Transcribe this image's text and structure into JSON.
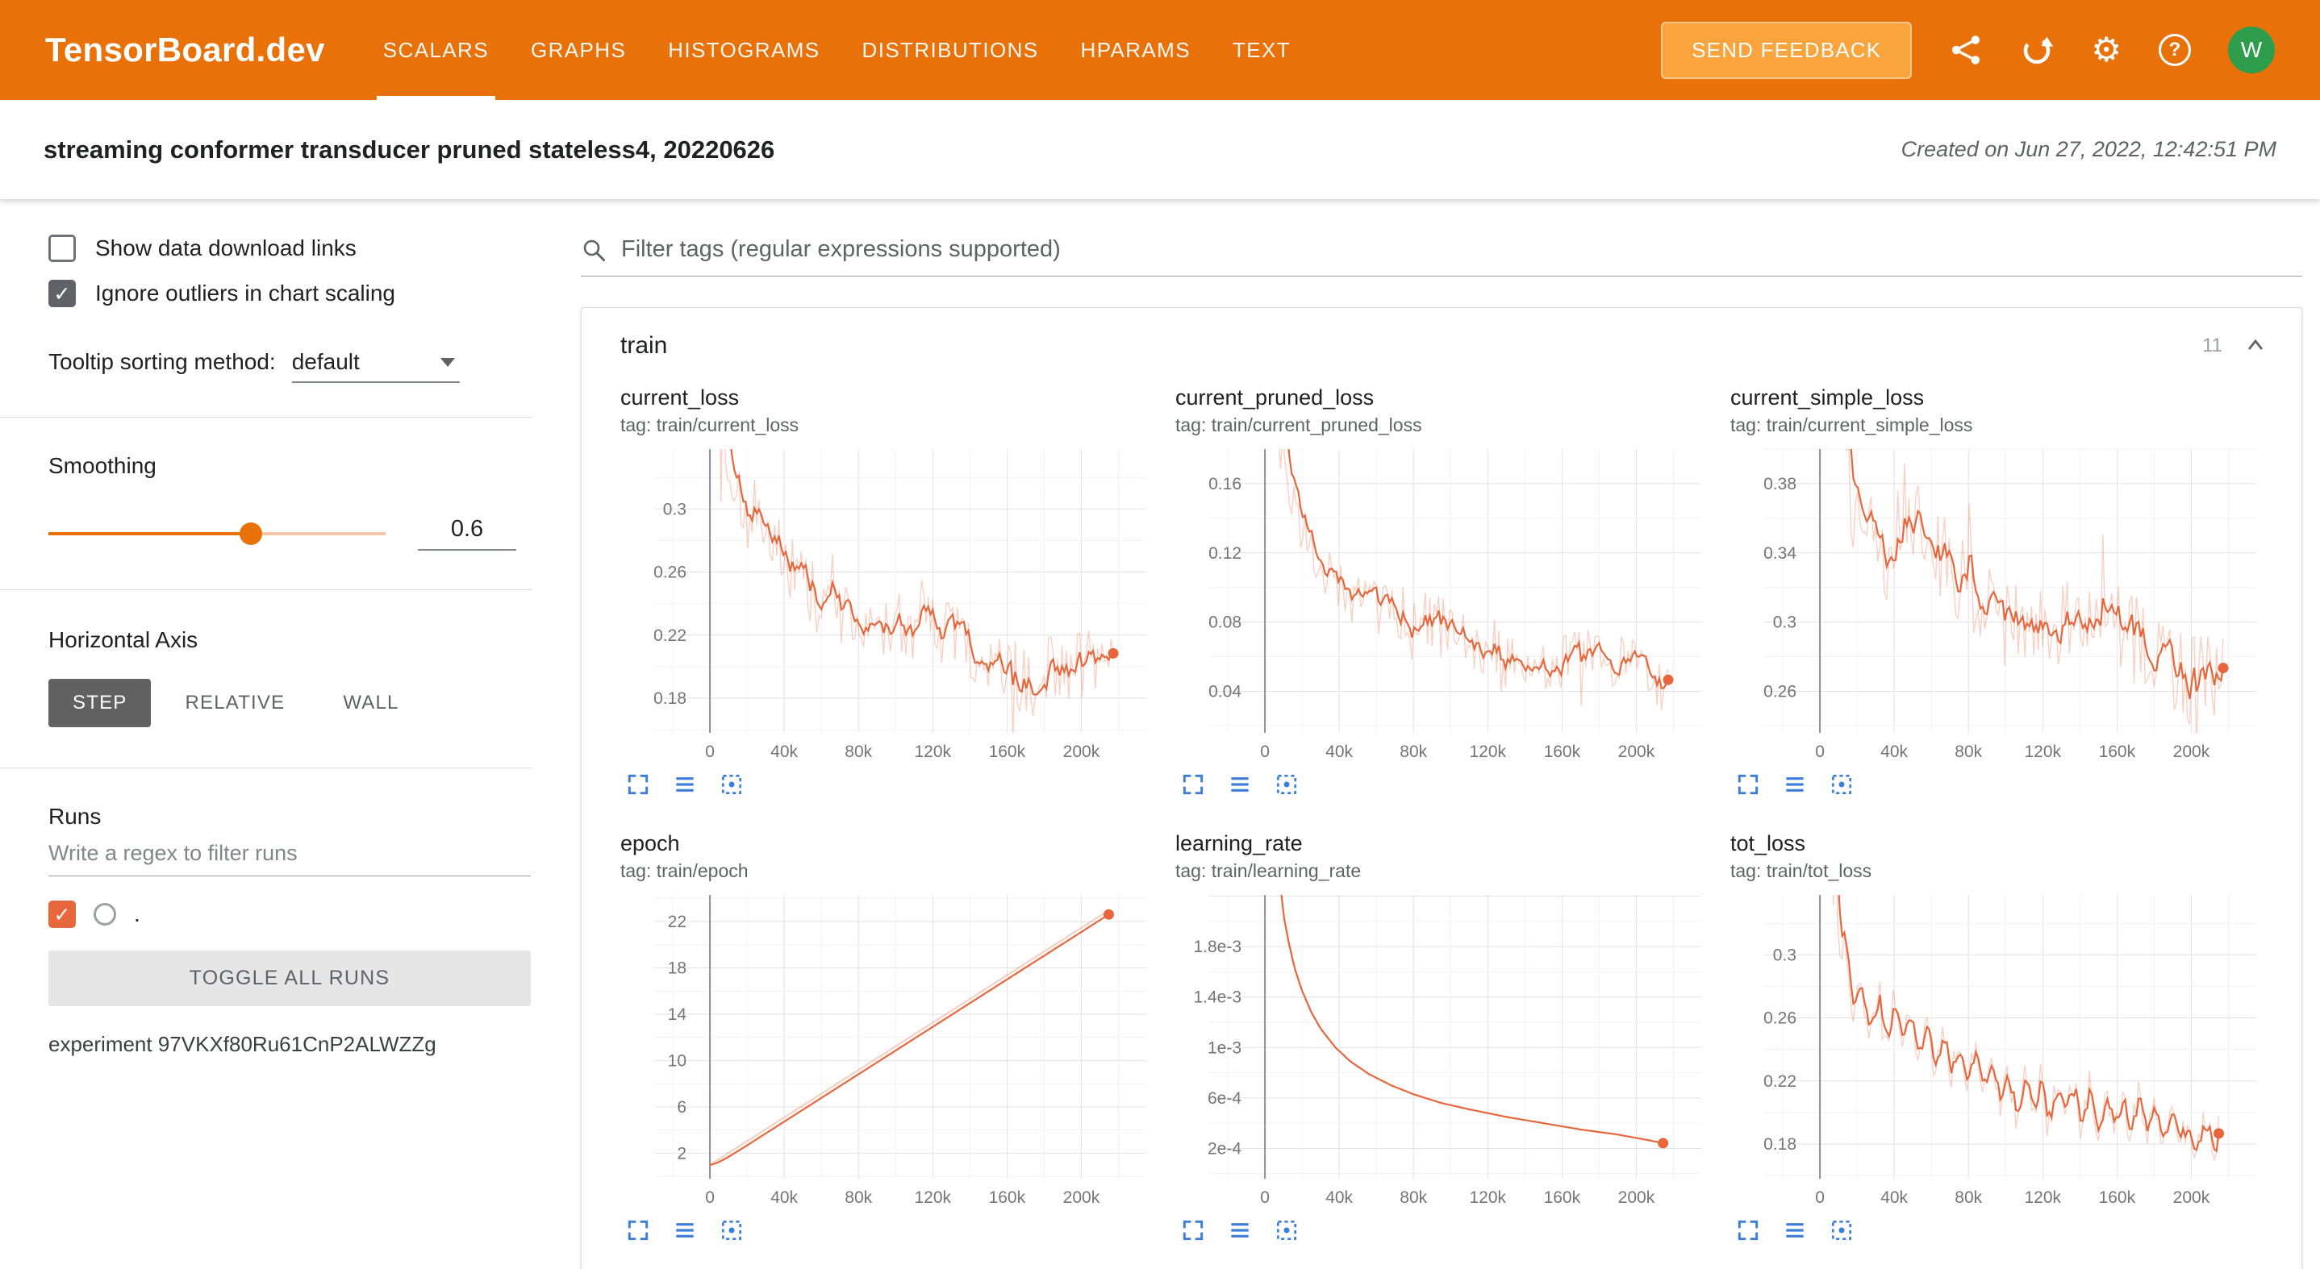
{
  "colors": {
    "header_bg": "#e8710a",
    "feedback_bg": "#f9a43d",
    "avatar_green": "#2e9e4c",
    "series": "#e8663c",
    "series_raw": "rgba(232,102,60,0.30)",
    "action_icon_blue": "#3d7fd8"
  },
  "header": {
    "app_title": "TensorBoard.dev",
    "tabs": [
      {
        "label": "SCALARS",
        "active": true
      },
      {
        "label": "GRAPHS",
        "active": false
      },
      {
        "label": "HISTOGRAMS",
        "active": false
      },
      {
        "label": "DISTRIBUTIONS",
        "active": false
      },
      {
        "label": "HPARAMS",
        "active": false
      },
      {
        "label": "TEXT",
        "active": false
      }
    ],
    "send_feedback_label": "SEND FEEDBACK",
    "avatar_letter": "W"
  },
  "experiment_bar": {
    "title": "streaming conformer transducer pruned stateless4, 20220626",
    "created": "Created on Jun 27, 2022, 12:42:51 PM"
  },
  "sidebar": {
    "show_download_label": "Show data download links",
    "show_download_checked": false,
    "ignore_outliers_label": "Ignore outliers in chart scaling",
    "ignore_outliers_checked": true,
    "tooltip_sorting_label": "Tooltip sorting method:",
    "tooltip_sorting_value": "default",
    "smoothing_label": "Smoothing",
    "smoothing_value": "0.6",
    "horizontal_axis_label": "Horizontal Axis",
    "axis_buttons": [
      {
        "label": "STEP",
        "active": true
      },
      {
        "label": "RELATIVE",
        "active": false
      },
      {
        "label": "WALL",
        "active": false
      }
    ],
    "runs_label": "Runs",
    "runs_filter_placeholder": "Write a regex to filter runs",
    "run_item": {
      "name": ".",
      "checked": true
    },
    "toggle_all_label": "TOGGLE ALL RUNS",
    "experiment_id_text": "experiment 97VKXf80Ru61CnP2ALWZZg"
  },
  "main": {
    "filter_placeholder": "Filter tags (regular expressions supported)",
    "card": {
      "title": "train",
      "count": "11"
    }
  },
  "chart_data": [
    {
      "type": "line",
      "title": "current_loss",
      "tag": "tag: train/current_loss",
      "x_ticks": [
        [
          0,
          "0"
        ],
        [
          40000,
          "40k"
        ],
        [
          80000,
          "80k"
        ],
        [
          120000,
          "120k"
        ],
        [
          160000,
          "160k"
        ],
        [
          200000,
          "200k"
        ]
      ],
      "x_range": [
        -30000,
        235000
      ],
      "y_ticks": [
        [
          0.18,
          "0.18"
        ],
        [
          0.22,
          "0.22"
        ],
        [
          0.26,
          "0.26"
        ],
        [
          0.3,
          "0.3"
        ]
      ],
      "y_range": [
        0.158,
        0.338
      ],
      "series": [
        {
          "name": ".",
          "points": [
            [
              0,
              0.42
            ],
            [
              3000,
              0.36
            ],
            [
              8000,
              0.315
            ],
            [
              15000,
              0.295
            ],
            [
              25000,
              0.278
            ],
            [
              40000,
              0.262
            ],
            [
              60000,
              0.245
            ],
            [
              80000,
              0.232
            ],
            [
              100000,
              0.223
            ],
            [
              120000,
              0.215
            ],
            [
              140000,
              0.209
            ],
            [
              160000,
              0.203
            ],
            [
              180000,
              0.199
            ],
            [
              200000,
              0.196
            ],
            [
              218000,
              0.192
            ]
          ]
        }
      ],
      "render": {
        "noise": 0.024,
        "spike_until": 14000,
        "spike_amp": 0.13,
        "ema": 0.3
      }
    },
    {
      "type": "line",
      "title": "current_pruned_loss",
      "tag": "tag: train/current_pruned_loss",
      "x_ticks": [
        [
          0,
          "0"
        ],
        [
          40000,
          "40k"
        ],
        [
          80000,
          "80k"
        ],
        [
          120000,
          "120k"
        ],
        [
          160000,
          "160k"
        ],
        [
          200000,
          "200k"
        ]
      ],
      "x_range": [
        -30000,
        235000
      ],
      "y_ticks": [
        [
          0.04,
          "0.04"
        ],
        [
          0.08,
          "0.08"
        ],
        [
          0.12,
          "0.12"
        ],
        [
          0.16,
          "0.16"
        ]
      ],
      "y_range": [
        0.016,
        0.18
      ],
      "series": [
        {
          "name": ".",
          "points": [
            [
              0,
              0.26
            ],
            [
              3000,
              0.21
            ],
            [
              8000,
              0.175
            ],
            [
              15000,
              0.148
            ],
            [
              25000,
              0.124
            ],
            [
              40000,
              0.104
            ],
            [
              60000,
              0.089
            ],
            [
              80000,
              0.079
            ],
            [
              100000,
              0.072
            ],
            [
              120000,
              0.066
            ],
            [
              140000,
              0.061
            ],
            [
              160000,
              0.057
            ],
            [
              180000,
              0.054
            ],
            [
              200000,
              0.051
            ],
            [
              218000,
              0.048
            ]
          ]
        }
      ],
      "render": {
        "noise": 0.016,
        "spike_until": 14000,
        "spike_amp": 0.06,
        "ema": 0.3
      }
    },
    {
      "type": "line",
      "title": "current_simple_loss",
      "tag": "tag: train/current_simple_loss",
      "x_ticks": [
        [
          0,
          "0"
        ],
        [
          40000,
          "40k"
        ],
        [
          80000,
          "80k"
        ],
        [
          120000,
          "120k"
        ],
        [
          160000,
          "160k"
        ],
        [
          200000,
          "200k"
        ]
      ],
      "x_range": [
        -30000,
        235000
      ],
      "y_ticks": [
        [
          0.26,
          "0.26"
        ],
        [
          0.3,
          "0.3"
        ],
        [
          0.34,
          "0.34"
        ],
        [
          0.38,
          "0.38"
        ]
      ],
      "y_range": [
        0.236,
        0.4
      ],
      "series": [
        {
          "name": ".",
          "points": [
            [
              0,
              0.52
            ],
            [
              3000,
              0.46
            ],
            [
              8000,
              0.415
            ],
            [
              15000,
              0.39
            ],
            [
              25000,
              0.368
            ],
            [
              40000,
              0.348
            ],
            [
              60000,
              0.331
            ],
            [
              80000,
              0.319
            ],
            [
              100000,
              0.31
            ],
            [
              120000,
              0.302
            ],
            [
              140000,
              0.295
            ],
            [
              160000,
              0.289
            ],
            [
              180000,
              0.283
            ],
            [
              200000,
              0.277
            ],
            [
              218000,
              0.271
            ]
          ]
        }
      ],
      "render": {
        "noise": 0.026,
        "spike_until": 14000,
        "spike_amp": 0.12,
        "ema": 0.3
      }
    },
    {
      "type": "line",
      "title": "epoch",
      "tag": "tag: train/epoch",
      "x_ticks": [
        [
          0,
          "0"
        ],
        [
          40000,
          "40k"
        ],
        [
          80000,
          "80k"
        ],
        [
          120000,
          "120k"
        ],
        [
          160000,
          "160k"
        ],
        [
          200000,
          "200k"
        ]
      ],
      "x_range": [
        -30000,
        235000
      ],
      "y_ticks": [
        [
          2,
          "2"
        ],
        [
          6,
          "6"
        ],
        [
          10,
          "10"
        ],
        [
          14,
          "14"
        ],
        [
          18,
          "18"
        ],
        [
          22,
          "22"
        ]
      ],
      "y_range": [
        -0.2,
        24.3
      ],
      "series": [
        {
          "name": ".",
          "points": [
            [
              0,
              1
            ],
            [
              215000,
              23
            ]
          ]
        }
      ],
      "render": {
        "noise": 0,
        "ema": 0.25
      }
    },
    {
      "type": "line",
      "title": "learning_rate",
      "tag": "tag: train/learning_rate",
      "x_ticks": [
        [
          0,
          "0"
        ],
        [
          40000,
          "40k"
        ],
        [
          80000,
          "80k"
        ],
        [
          120000,
          "120k"
        ],
        [
          160000,
          "160k"
        ],
        [
          200000,
          "200k"
        ]
      ],
      "x_range": [
        -30000,
        235000
      ],
      "y_ticks": [
        [
          0.0002,
          "2e-4"
        ],
        [
          0.0006,
          "6e-4"
        ],
        [
          0.001,
          "1e-3"
        ],
        [
          0.0014,
          "1.4e-3"
        ],
        [
          0.0018,
          "1.8e-3"
        ]
      ],
      "y_range": [
        -4e-05,
        0.00221
      ],
      "series": [
        {
          "name": ".",
          "points": [
            [
              8000,
              0.00235
            ],
            [
              10000,
              0.00205
            ],
            [
              13000,
              0.00182
            ],
            [
              16000,
              0.00163
            ],
            [
              20000,
              0.00145
            ],
            [
              25000,
              0.00128
            ],
            [
              30000,
              0.00115
            ],
            [
              38000,
              0.001
            ],
            [
              46000,
              0.00089
            ],
            [
              56000,
              0.00079
            ],
            [
              68000,
              0.0007
            ],
            [
              80000,
              0.00063
            ],
            [
              95000,
              0.00056
            ],
            [
              110000,
              0.00051
            ],
            [
              130000,
              0.00045
            ],
            [
              150000,
              0.0004
            ],
            [
              170000,
              0.00035
            ],
            [
              190000,
              0.00031
            ],
            [
              205000,
              0.00027
            ],
            [
              215000,
              0.00024
            ]
          ]
        }
      ],
      "render": {
        "noise": 0,
        "ema": 1,
        "single": true
      }
    },
    {
      "type": "line",
      "title": "tot_loss",
      "tag": "tag: train/tot_loss",
      "x_ticks": [
        [
          0,
          "0"
        ],
        [
          40000,
          "40k"
        ],
        [
          80000,
          "80k"
        ],
        [
          120000,
          "120k"
        ],
        [
          160000,
          "160k"
        ],
        [
          200000,
          "200k"
        ]
      ],
      "x_range": [
        -30000,
        235000
      ],
      "y_ticks": [
        [
          0.18,
          "0.18"
        ],
        [
          0.22,
          "0.22"
        ],
        [
          0.26,
          "0.26"
        ],
        [
          0.3,
          "0.3"
        ]
      ],
      "y_range": [
        0.158,
        0.338
      ],
      "series": [
        {
          "name": ".",
          "points": [
            [
              0,
              0.4
            ],
            [
              4000,
              0.34
            ],
            [
              8000,
              0.315
            ],
            [
              14000,
              0.292
            ],
            [
              20000,
              0.277
            ],
            [
              30000,
              0.264
            ],
            [
              40000,
              0.254
            ],
            [
              55000,
              0.242
            ],
            [
              70000,
              0.233
            ],
            [
              85000,
              0.226
            ],
            [
              100000,
              0.219
            ],
            [
              120000,
              0.211
            ],
            [
              140000,
              0.204
            ],
            [
              160000,
              0.198
            ],
            [
              180000,
              0.193
            ],
            [
              200000,
              0.189
            ],
            [
              215000,
              0.185
            ]
          ]
        }
      ],
      "render": {
        "noise": 0.01,
        "spike_until": 12000,
        "spike_amp": 0.16,
        "ema": 0.5,
        "osc": {
          "period": 8800,
          "amp": 0.016
        }
      }
    }
  ]
}
